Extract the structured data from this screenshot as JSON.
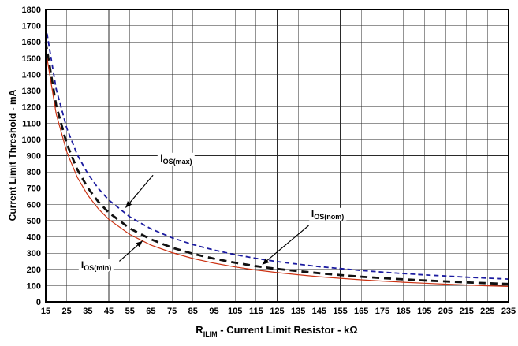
{
  "chart_data": {
    "type": "line",
    "xlabel_prefix": "R",
    "xlabel_sub": "ILIM",
    "xlabel_rest": " - Current Limit Resistor - kΩ",
    "ylabel": "Current Limit Threshold - mA",
    "xlim": [
      15,
      235
    ],
    "ylim": [
      0,
      1800
    ],
    "grid": true,
    "legend_position": "none",
    "x_ticks": [
      15,
      25,
      35,
      45,
      55,
      65,
      75,
      85,
      95,
      105,
      115,
      125,
      135,
      145,
      155,
      165,
      175,
      185,
      195,
      205,
      215,
      225,
      235
    ],
    "y_ticks": [
      0,
      100,
      200,
      300,
      400,
      500,
      600,
      700,
      800,
      900,
      1000,
      1100,
      1200,
      1300,
      1400,
      1500,
      1600,
      1700,
      1800
    ],
    "x": [
      15,
      20,
      25,
      30,
      35,
      40,
      45,
      55,
      65,
      75,
      85,
      95,
      105,
      115,
      125,
      135,
      145,
      155,
      165,
      175,
      185,
      195,
      205,
      215,
      225,
      235
    ],
    "series": [
      {
        "name": "IOS(max)",
        "color": "#1c1ca0",
        "style": "dashed",
        "dash": "6 4",
        "width": 1.8,
        "values": [
          1700,
          1310,
          1069,
          906,
          789,
          698,
          627,
          523,
          450,
          395,
          352,
          319,
          291,
          268,
          248,
          232,
          217,
          205,
          193,
          183,
          174,
          166,
          159,
          152,
          146,
          140
        ]
      },
      {
        "name": "IOS(nom)",
        "color": "#111111",
        "style": "dashed",
        "dash": "9 6",
        "width": 2.8,
        "values": [
          1600,
          1209,
          973,
          815,
          702,
          616,
          549,
          452,
          385,
          334,
          296,
          266,
          241,
          220,
          203,
          189,
          176,
          165,
          155,
          146,
          139,
          132,
          126,
          120,
          115,
          110
        ]
      },
      {
        "name": "IOS(min)",
        "color": "#cc3314",
        "style": "solid",
        "dash": "",
        "width": 1.2,
        "values": [
          1550,
          1157,
          923,
          767,
          656,
          573,
          508,
          415,
          350,
          303,
          267,
          238,
          215,
          196,
          180,
          167,
          155,
          145,
          136,
          128,
          121,
          115,
          109,
          104,
          99,
          95
        ]
      }
    ],
    "annotations": [
      {
        "prefix": "I",
        "sub": "OS(max)",
        "label_x": 77,
        "label_y": 880,
        "tail_x": 66,
        "tail_y": 780,
        "tip_x": 53,
        "tip_y": 580
      },
      {
        "prefix": "I",
        "sub": "OS(nom)",
        "label_x": 149,
        "label_y": 540,
        "tail_x": 140,
        "tail_y": 470,
        "tip_x": 118,
        "tip_y": 230
      },
      {
        "prefix": "I",
        "sub": "OS(min)",
        "label_x": 39,
        "label_y": 225,
        "tail_x": 50,
        "tail_y": 250,
        "tip_x": 61,
        "tip_y": 375
      }
    ]
  }
}
